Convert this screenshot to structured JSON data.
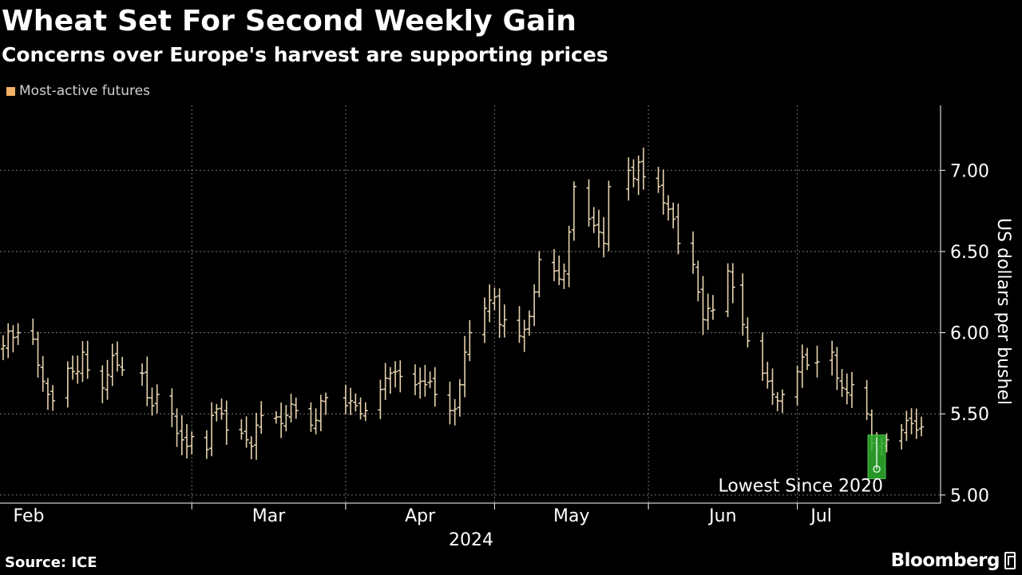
{
  "header": {
    "title": "Wheat Set For Second Weekly Gain",
    "subtitle": "Concerns over Europe's harvest are supporting prices"
  },
  "footer": {
    "source": "Source: ICE",
    "brand": "Bloomberg"
  },
  "colors": {
    "background": "#000000",
    "bars": "#e6d2ad",
    "legend_swatch": "#f4b266",
    "highlight": "#2fb22f",
    "grid": "#777777"
  },
  "chart_data": {
    "type": "ohlc",
    "legend": [
      "Most-active futures"
    ],
    "legend_position": "top-left",
    "ylabel": "US dollars per bushel",
    "year_label": "2024",
    "ylim": [
      4.95,
      7.4
    ],
    "yticks": [
      5.0,
      5.5,
      6.0,
      6.5,
      7.0
    ],
    "ytick_labels": [
      "5.00",
      "5.50",
      "6.00",
      "6.50",
      "7.00"
    ],
    "x_months": [
      {
        "label": "Feb",
        "date": "2024-02-01"
      },
      {
        "label": "Mar",
        "date": "2024-03-01"
      },
      {
        "label": "Apr",
        "date": "2024-04-01"
      },
      {
        "label": "May",
        "date": "2024-05-01"
      },
      {
        "label": "Jun",
        "date": "2024-06-01"
      },
      {
        "label": "Jul",
        "date": "2024-07-01"
      }
    ],
    "x_range": [
      "2024-01-23",
      "2024-07-26"
    ],
    "grid": true,
    "annotation": {
      "text": "Lowest Since 2020",
      "date": "2024-07-17",
      "low": 5.16,
      "box_low": 5.1,
      "box_high": 5.37
    },
    "closes": [
      [
        "2024-01-23",
        5.92
      ],
      [
        "2024-01-24",
        6.01
      ],
      [
        "2024-01-25",
        5.97
      ],
      [
        "2024-01-26",
        6.0
      ],
      [
        "2024-01-29",
        5.96
      ],
      [
        "2024-01-30",
        5.8
      ],
      [
        "2024-01-31",
        5.7
      ],
      [
        "2024-02-01",
        5.62
      ],
      [
        "2024-02-02",
        5.58
      ],
      [
        "2024-02-05",
        5.78
      ],
      [
        "2024-02-06",
        5.76
      ],
      [
        "2024-02-07",
        5.76
      ],
      [
        "2024-02-08",
        5.88
      ],
      [
        "2024-02-09",
        5.77
      ],
      [
        "2024-02-12",
        5.66
      ],
      [
        "2024-02-13",
        5.74
      ],
      [
        "2024-02-14",
        5.86
      ],
      [
        "2024-02-15",
        5.8
      ],
      [
        "2024-02-16",
        5.77
      ],
      [
        "2024-02-20",
        5.75
      ],
      [
        "2024-02-21",
        5.6
      ],
      [
        "2024-02-22",
        5.55
      ],
      [
        "2024-02-23",
        5.62
      ],
      [
        "2024-02-26",
        5.5
      ],
      [
        "2024-02-27",
        5.38
      ],
      [
        "2024-02-28",
        5.34
      ],
      [
        "2024-02-29",
        5.3
      ],
      [
        "2024-03-01",
        5.36
      ],
      [
        "2024-03-04",
        5.28
      ],
      [
        "2024-03-05",
        5.49
      ],
      [
        "2024-03-06",
        5.53
      ],
      [
        "2024-03-07",
        5.5
      ],
      [
        "2024-03-08",
        5.4
      ],
      [
        "2024-03-11",
        5.38
      ],
      [
        "2024-03-12",
        5.34
      ],
      [
        "2024-03-13",
        5.3
      ],
      [
        "2024-03-14",
        5.43
      ],
      [
        "2024-03-15",
        5.49
      ],
      [
        "2024-03-18",
        5.48
      ],
      [
        "2024-03-19",
        5.44
      ],
      [
        "2024-03-20",
        5.49
      ],
      [
        "2024-03-21",
        5.56
      ],
      [
        "2024-03-22",
        5.52
      ],
      [
        "2024-03-25",
        5.43
      ],
      [
        "2024-03-26",
        5.46
      ],
      [
        "2024-03-27",
        5.58
      ],
      [
        "2024-03-28",
        5.6
      ],
      [
        "2024-04-01",
        5.55
      ],
      [
        "2024-04-02",
        5.58
      ],
      [
        "2024-04-03",
        5.55
      ],
      [
        "2024-04-04",
        5.5
      ],
      [
        "2024-04-05",
        5.52
      ],
      [
        "2024-04-08",
        5.65
      ],
      [
        "2024-04-09",
        5.72
      ],
      [
        "2024-04-10",
        5.75
      ],
      [
        "2024-04-11",
        5.76
      ],
      [
        "2024-04-12",
        5.73
      ],
      [
        "2024-04-15",
        5.68
      ],
      [
        "2024-04-16",
        5.7
      ],
      [
        "2024-04-17",
        5.68
      ],
      [
        "2024-04-18",
        5.7
      ],
      [
        "2024-04-19",
        5.62
      ],
      [
        "2024-04-22",
        5.52
      ],
      [
        "2024-04-23",
        5.53
      ],
      [
        "2024-04-24",
        5.68
      ],
      [
        "2024-04-25",
        5.88
      ],
      [
        "2024-04-26",
        6.0
      ],
      [
        "2024-04-29",
        6.15
      ],
      [
        "2024-04-30",
        6.2
      ],
      [
        "2024-05-01",
        6.22
      ],
      [
        "2024-05-02",
        6.05
      ],
      [
        "2024-05-03",
        6.08
      ],
      [
        "2024-05-06",
        5.98
      ],
      [
        "2024-05-07",
        6.02
      ],
      [
        "2024-05-08",
        6.1
      ],
      [
        "2024-05-09",
        6.25
      ],
      [
        "2024-05-10",
        6.45
      ],
      [
        "2024-05-13",
        6.38
      ],
      [
        "2024-05-14",
        6.33
      ],
      [
        "2024-05-15",
        6.38
      ],
      [
        "2024-05-16",
        6.62
      ],
      [
        "2024-05-17",
        6.9
      ],
      [
        "2024-05-20",
        6.7
      ],
      [
        "2024-05-21",
        6.66
      ],
      [
        "2024-05-22",
        6.62
      ],
      [
        "2024-05-23",
        6.55
      ],
      [
        "2024-05-24",
        6.9
      ],
      [
        "2024-05-28",
        7.0
      ],
      [
        "2024-05-29",
        6.95
      ],
      [
        "2024-05-30",
        7.05
      ],
      [
        "2024-05-31",
        6.96
      ],
      [
        "2024-06-03",
        6.9
      ],
      [
        "2024-06-04",
        6.8
      ],
      [
        "2024-06-05",
        6.76
      ],
      [
        "2024-06-06",
        6.7
      ],
      [
        "2024-06-07",
        6.55
      ],
      [
        "2024-06-10",
        6.42
      ],
      [
        "2024-06-11",
        6.25
      ],
      [
        "2024-06-12",
        6.08
      ],
      [
        "2024-06-13",
        6.15
      ],
      [
        "2024-06-14",
        6.14
      ],
      [
        "2024-06-17",
        6.38
      ],
      [
        "2024-06-18",
        6.28
      ],
      [
        "2024-06-20",
        6.05
      ],
      [
        "2024-06-21",
        5.95
      ],
      [
        "2024-06-24",
        5.75
      ],
      [
        "2024-06-25",
        5.7
      ],
      [
        "2024-06-26",
        5.62
      ],
      [
        "2024-06-27",
        5.58
      ],
      [
        "2024-06-28",
        5.62
      ],
      [
        "2024-07-01",
        5.76
      ],
      [
        "2024-07-02",
        5.85
      ],
      [
        "2024-07-03",
        5.8
      ],
      [
        "2024-07-05",
        5.82
      ],
      [
        "2024-07-08",
        5.88
      ],
      [
        "2024-07-09",
        5.72
      ],
      [
        "2024-07-10",
        5.66
      ],
      [
        "2024-07-11",
        5.63
      ],
      [
        "2024-07-12",
        5.68
      ],
      [
        "2024-07-15",
        5.5
      ],
      [
        "2024-07-16",
        5.32
      ],
      [
        "2024-07-17",
        5.28
      ],
      [
        "2024-07-18",
        5.32
      ],
      [
        "2024-07-19",
        5.34
      ],
      [
        "2024-07-22",
        5.4
      ],
      [
        "2024-07-23",
        5.46
      ],
      [
        "2024-07-24",
        5.44
      ],
      [
        "2024-07-25",
        5.4
      ],
      [
        "2024-07-26",
        5.42
      ]
    ]
  }
}
